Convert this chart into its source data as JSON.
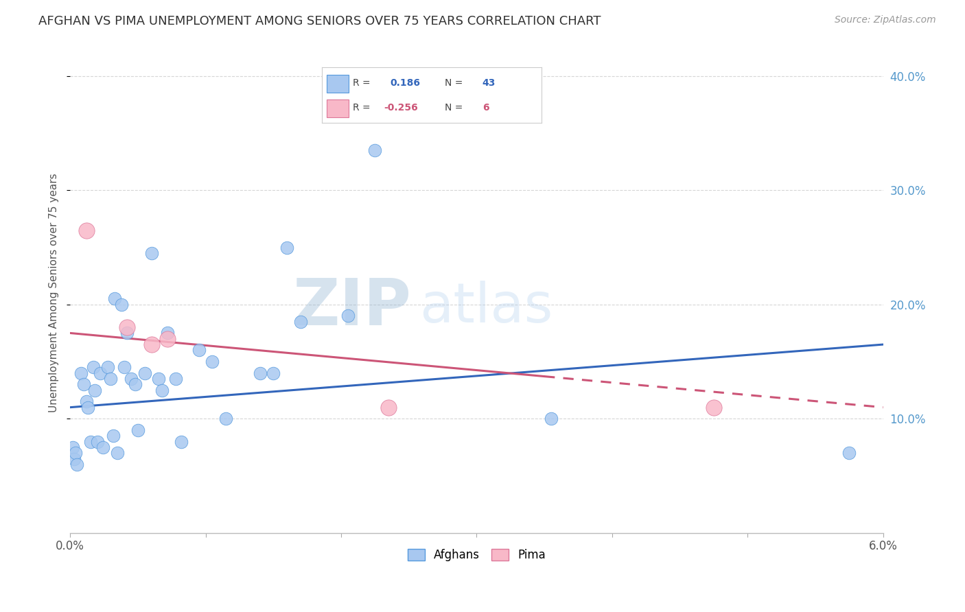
{
  "title": "AFGHAN VS PIMA UNEMPLOYMENT AMONG SENIORS OVER 75 YEARS CORRELATION CHART",
  "source": "Source: ZipAtlas.com",
  "ylabel": "Unemployment Among Seniors over 75 years",
  "xlim": [
    0.0,
    6.0
  ],
  "ylim": [
    0.0,
    42.0
  ],
  "yticks": [
    10.0,
    20.0,
    30.0,
    40.0
  ],
  "afghan_R": 0.186,
  "afghan_N": 43,
  "pima_R": -0.256,
  "pima_N": 6,
  "watermark_zip": "ZIP",
  "watermark_atlas": "atlas",
  "afghan_color": "#a8c8f0",
  "afghan_edge_color": "#5599dd",
  "afghan_line_color": "#3366bb",
  "pima_color": "#f8b8c8",
  "pima_edge_color": "#dd7799",
  "pima_line_color": "#cc5577",
  "afghans_x": [
    0.02,
    0.03,
    0.04,
    0.05,
    0.08,
    0.1,
    0.12,
    0.13,
    0.15,
    0.17,
    0.18,
    0.2,
    0.22,
    0.24,
    0.28,
    0.3,
    0.32,
    0.33,
    0.35,
    0.38,
    0.4,
    0.42,
    0.45,
    0.48,
    0.5,
    0.55,
    0.6,
    0.65,
    0.68,
    0.72,
    0.78,
    0.82,
    0.95,
    1.05,
    1.15,
    1.4,
    1.5,
    1.6,
    1.7,
    2.05,
    2.25,
    3.55,
    5.75
  ],
  "afghans_y": [
    7.5,
    6.5,
    7.0,
    6.0,
    14.0,
    13.0,
    11.5,
    11.0,
    8.0,
    14.5,
    12.5,
    8.0,
    14.0,
    7.5,
    14.5,
    13.5,
    8.5,
    20.5,
    7.0,
    20.0,
    14.5,
    17.5,
    13.5,
    13.0,
    9.0,
    14.0,
    24.5,
    13.5,
    12.5,
    17.5,
    13.5,
    8.0,
    16.0,
    15.0,
    10.0,
    14.0,
    14.0,
    25.0,
    18.5,
    19.0,
    33.5,
    10.0,
    7.0
  ],
  "pima_x": [
    0.12,
    0.42,
    0.6,
    0.72,
    2.35,
    4.75
  ],
  "pima_y": [
    26.5,
    18.0,
    16.5,
    17.0,
    11.0,
    11.0
  ],
  "afghan_line_x0": 0.0,
  "afghan_line_y0": 11.0,
  "afghan_line_x1": 6.0,
  "afghan_line_y1": 16.5,
  "pima_line_x0": 0.0,
  "pima_line_y0": 17.5,
  "pima_line_x1": 6.0,
  "pima_line_y1": 11.0,
  "pima_cross_x": 3.5,
  "background_color": "#ffffff"
}
